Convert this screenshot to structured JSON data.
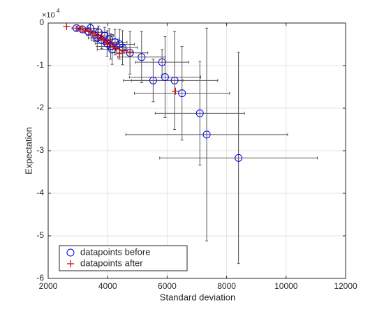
{
  "chart_data": {
    "type": "scatter",
    "x_label": "Standard deviation",
    "y_label": "Expectation",
    "y_exponent_base": "×10",
    "y_exponent": "4",
    "xlim": [
      2000,
      12000
    ],
    "xticks": [
      2000,
      4000,
      6000,
      8000,
      10000,
      12000
    ],
    "ylim": [
      -6,
      0
    ],
    "yticks": [
      0,
      -1,
      -2,
      -3,
      -4,
      -5,
      -6
    ],
    "grid": true,
    "legend_position": "lower left",
    "error_color": "#555555",
    "series": [
      {
        "name": "datapoints before",
        "color": "#0000ff",
        "marker": "circle",
        "x": [
          2950,
          3150,
          3350,
          3420,
          3550,
          3650,
          3700,
          3800,
          3900,
          3980,
          4050,
          4100,
          4150,
          4250,
          4400,
          4500,
          4750,
          5140,
          5830,
          5530,
          5930,
          6250,
          6500,
          7100,
          7330,
          8400
        ],
        "y": [
          -0.12,
          -0.15,
          -0.2,
          -0.12,
          -0.28,
          -0.35,
          -0.22,
          -0.4,
          -0.3,
          -0.48,
          -0.38,
          -0.55,
          -0.62,
          -0.45,
          -0.5,
          -0.58,
          -0.7,
          -0.8,
          -0.92,
          -1.35,
          -1.27,
          -1.35,
          -1.65,
          -2.12,
          -2.62,
          -3.17
        ],
        "x_error": [
          150,
          200,
          200,
          250,
          250,
          300,
          300,
          350,
          300,
          400,
          350,
          450,
          500,
          400,
          500,
          500,
          600,
          800,
          900,
          1000,
          1200,
          1450,
          1600,
          1500,
          2720,
          2650
        ],
        "y_error": [
          0.05,
          0.08,
          0.1,
          0.1,
          0.15,
          0.2,
          0.15,
          0.2,
          0.2,
          0.3,
          0.25,
          0.3,
          0.35,
          0.3,
          0.35,
          0.4,
          0.5,
          0.6,
          0.3,
          0.5,
          0.95,
          1.15,
          1.1,
          1.22,
          2.5,
          2.48
        ]
      },
      {
        "name": "datapoints after",
        "color": "#cc0000",
        "marker": "plus",
        "x": [
          2620,
          3000,
          3100,
          3250,
          3400,
          3500,
          3600,
          3700,
          3750,
          3850,
          3950,
          4000,
          4100,
          4200,
          4300,
          4400,
          4550,
          4750,
          6280
        ],
        "y": [
          -0.08,
          -0.12,
          -0.14,
          -0.18,
          -0.2,
          -0.25,
          -0.3,
          -0.28,
          -0.35,
          -0.38,
          -0.42,
          -0.5,
          -0.45,
          -0.55,
          -0.6,
          -0.72,
          -0.65,
          -0.68,
          -1.6
        ]
      }
    ]
  }
}
